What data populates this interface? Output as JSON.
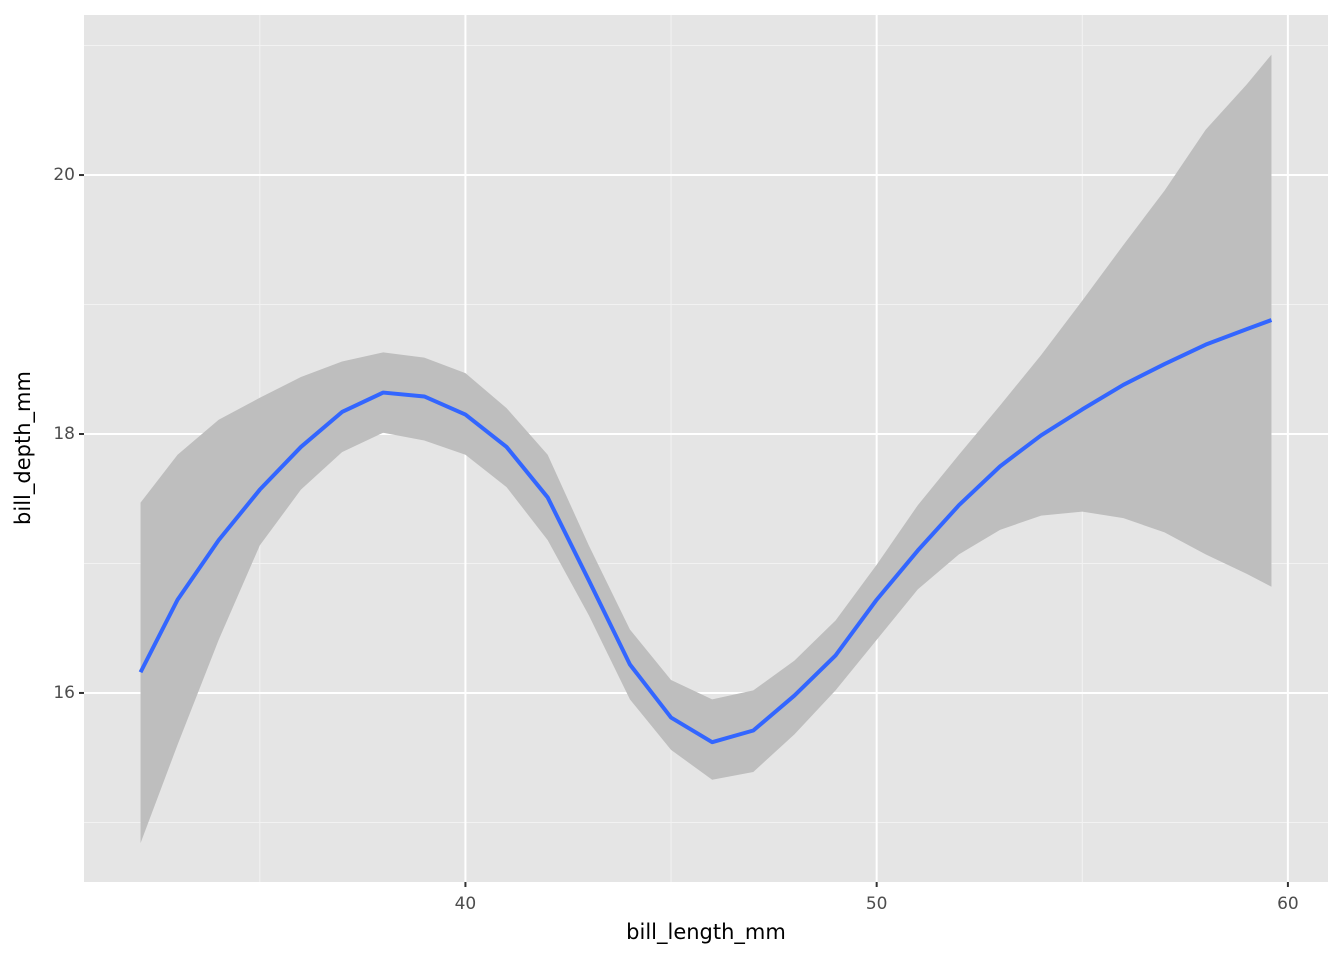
{
  "chart_data": {
    "type": "smooth",
    "x_label": "bill_length_mm",
    "y_label": "bill_depth_mm",
    "x": [
      32.1,
      33,
      34,
      35,
      36,
      37,
      38,
      39,
      40,
      41,
      42,
      43,
      44,
      45,
      46,
      47,
      48,
      49,
      50,
      51,
      52,
      53,
      54,
      55,
      56,
      57,
      58,
      59,
      59.6
    ],
    "values": [
      16.16,
      16.72,
      17.18,
      17.57,
      17.9,
      18.17,
      18.32,
      18.29,
      18.15,
      17.9,
      17.51,
      16.87,
      16.22,
      15.81,
      15.62,
      15.71,
      15.98,
      16.29,
      16.72,
      17.1,
      17.45,
      17.75,
      17.99,
      18.19,
      18.38,
      18.54,
      18.69,
      18.81,
      18.88
    ],
    "lower": [
      14.84,
      15.6,
      16.41,
      17.14,
      17.57,
      17.86,
      18.01,
      17.95,
      17.84,
      17.59,
      17.18,
      16.6,
      15.95,
      15.56,
      15.33,
      15.39,
      15.68,
      16.02,
      16.41,
      16.8,
      17.07,
      17.26,
      17.37,
      17.4,
      17.35,
      17.24,
      17.07,
      16.92,
      16.82
    ],
    "upper": [
      17.47,
      17.84,
      18.11,
      18.28,
      18.44,
      18.56,
      18.63,
      18.59,
      18.47,
      18.2,
      17.84,
      17.14,
      16.49,
      16.1,
      15.95,
      16.02,
      16.25,
      16.56,
      16.99,
      17.45,
      17.84,
      18.22,
      18.61,
      19.03,
      19.46,
      19.88,
      20.35,
      20.7,
      20.93
    ],
    "color": "#3366ff",
    "band_color": "#bebebe",
    "panel_color": "#e5e5e5",
    "xlim": [
      30.725,
      60.975
    ],
    "ylim": [
      14.54,
      21.236
    ],
    "xticks": [
      40,
      50,
      60
    ],
    "yticks": [
      16,
      18,
      20
    ],
    "x_minor_grid": [
      35,
      45,
      55
    ],
    "y_minor_grid": [
      15,
      17,
      19,
      21
    ],
    "grid": true
  }
}
